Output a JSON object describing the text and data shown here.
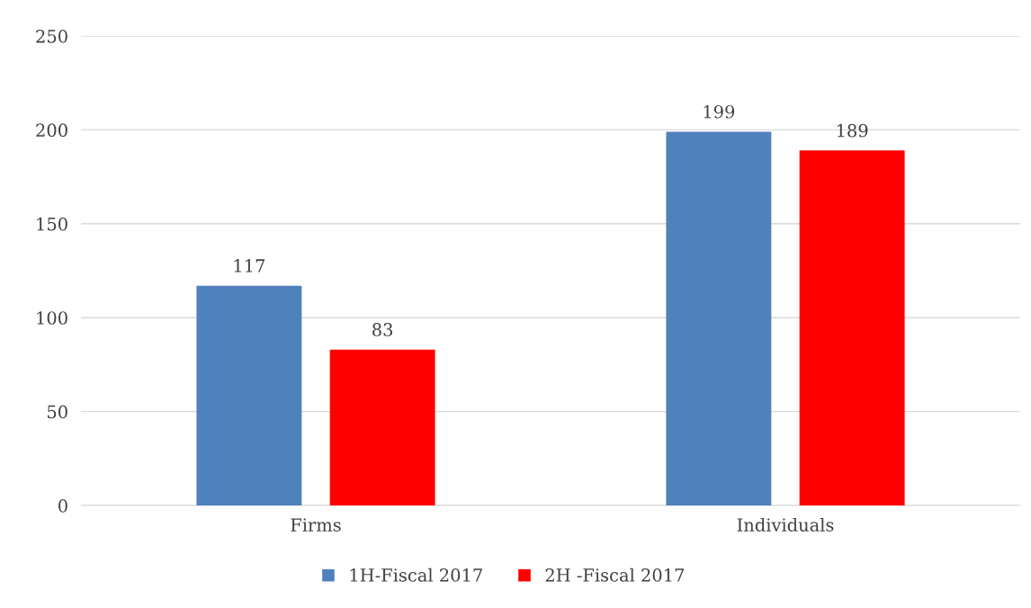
{
  "chart_data": {
    "type": "bar",
    "categories": [
      "Firms",
      "Individuals"
    ],
    "series": [
      {
        "name": "1H-Fiscal 2017",
        "color": "#4f81bd",
        "values": [
          117,
          199
        ]
      },
      {
        "name": "2H -Fiscal 2017",
        "color": "#ff0000",
        "values": [
          83,
          189
        ]
      }
    ],
    "ylim": [
      0,
      250
    ],
    "yticks": [
      0,
      50,
      100,
      150,
      200,
      250
    ],
    "grid": "y",
    "legend": "bottom",
    "data_labels": true
  }
}
